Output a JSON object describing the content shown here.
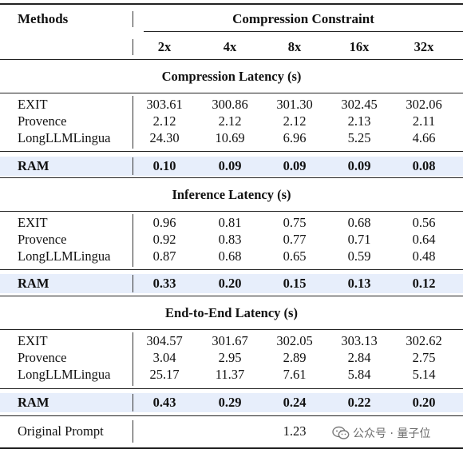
{
  "header": {
    "methods_label": "Methods",
    "constraint_label": "Compression Constraint",
    "columns": [
      "2x",
      "4x",
      "8x",
      "16x",
      "32x"
    ]
  },
  "sections": [
    {
      "title": "Compression Latency (s)",
      "rows": [
        {
          "method": "EXIT",
          "values": [
            "303.61",
            "300.86",
            "301.30",
            "302.45",
            "302.06"
          ]
        },
        {
          "method": "Provence",
          "values": [
            "2.12",
            "2.12",
            "2.12",
            "2.13",
            "2.11"
          ]
        },
        {
          "method": "LongLLMLingua",
          "values": [
            "24.30",
            "10.69",
            "6.96",
            "5.25",
            "4.66"
          ]
        }
      ],
      "highlight": {
        "method": "RAM",
        "values": [
          "0.10",
          "0.09",
          "0.09",
          "0.09",
          "0.08"
        ]
      }
    },
    {
      "title": "Inference Latency (s)",
      "rows": [
        {
          "method": "EXIT",
          "values": [
            "0.96",
            "0.81",
            "0.75",
            "0.68",
            "0.56"
          ]
        },
        {
          "method": "Provence",
          "values": [
            "0.92",
            "0.83",
            "0.77",
            "0.71",
            "0.64"
          ]
        },
        {
          "method": "LongLLMLingua",
          "values": [
            "0.87",
            "0.68",
            "0.65",
            "0.59",
            "0.48"
          ]
        }
      ],
      "highlight": {
        "method": "RAM",
        "values": [
          "0.33",
          "0.20",
          "0.15",
          "0.13",
          "0.12"
        ]
      }
    },
    {
      "title": "End-to-End Latency (s)",
      "rows": [
        {
          "method": "EXIT",
          "values": [
            "304.57",
            "301.67",
            "302.05",
            "303.13",
            "302.62"
          ]
        },
        {
          "method": "Provence",
          "values": [
            "3.04",
            "2.95",
            "2.89",
            "2.84",
            "2.75"
          ]
        },
        {
          "method": "LongLLMLingua",
          "values": [
            "25.17",
            "11.37",
            "7.61",
            "5.84",
            "5.14"
          ]
        }
      ],
      "highlight": {
        "method": "RAM",
        "values": [
          "0.43",
          "0.29",
          "0.24",
          "0.22",
          "0.20"
        ]
      }
    }
  ],
  "footer_row": {
    "method": "Original Prompt",
    "value": "1.23"
  },
  "watermark": {
    "text": "公众号 · 量子位",
    "icon": "wechat-icon"
  },
  "colors": {
    "highlight_band": "#e7eefb",
    "rule": "#222222"
  }
}
